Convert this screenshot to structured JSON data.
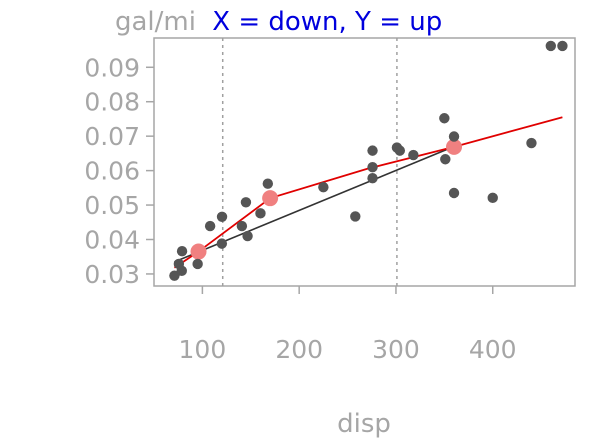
{
  "chart_data": {
    "type": "scatter",
    "title_prefix": "gal/mi",
    "title_main": "X = down, Y = up",
    "title_main_color": "#0000dd",
    "xlabel": "disp",
    "ylabel": "",
    "xlim": [
      50,
      485
    ],
    "ylim": [
      0.0265,
      0.0985
    ],
    "x_ticks": [
      100,
      200,
      300,
      400
    ],
    "y_ticks": [
      0.03,
      0.04,
      0.05,
      0.06,
      0.07,
      0.08,
      0.09
    ],
    "y_tick_labels": [
      "0.03",
      "0.04",
      "0.05",
      "0.06",
      "0.07",
      "0.08",
      "0.09"
    ],
    "vlines": [
      121,
      301
    ],
    "points": [
      {
        "x": 71.1,
        "y": 0.0295
      },
      {
        "x": 75.7,
        "y": 0.0329
      },
      {
        "x": 78.7,
        "y": 0.0309
      },
      {
        "x": 79.0,
        "y": 0.0366
      },
      {
        "x": 95.1,
        "y": 0.0329
      },
      {
        "x": 108.0,
        "y": 0.0439
      },
      {
        "x": 120.1,
        "y": 0.0388
      },
      {
        "x": 120.3,
        "y": 0.0466
      },
      {
        "x": 140.8,
        "y": 0.0439
      },
      {
        "x": 145.0,
        "y": 0.0508
      },
      {
        "x": 146.7,
        "y": 0.041
      },
      {
        "x": 160.0,
        "y": 0.0476
      },
      {
        "x": 167.6,
        "y": 0.0562
      },
      {
        "x": 225.0,
        "y": 0.0552
      },
      {
        "x": 258.0,
        "y": 0.0467
      },
      {
        "x": 275.8,
        "y": 0.0578
      },
      {
        "x": 275.8,
        "y": 0.061
      },
      {
        "x": 275.8,
        "y": 0.0658
      },
      {
        "x": 301.0,
        "y": 0.0667
      },
      {
        "x": 304.0,
        "y": 0.0658
      },
      {
        "x": 318.0,
        "y": 0.0645
      },
      {
        "x": 350.0,
        "y": 0.0752
      },
      {
        "x": 351.0,
        "y": 0.0633
      },
      {
        "x": 360.0,
        "y": 0.0535
      },
      {
        "x": 360.0,
        "y": 0.0699
      },
      {
        "x": 400.0,
        "y": 0.0521
      },
      {
        "x": 440.0,
        "y": 0.068
      },
      {
        "x": 460.0,
        "y": 0.0962
      },
      {
        "x": 472.0,
        "y": 0.0962
      }
    ],
    "group_means": [
      {
        "x": 96.0,
        "y": 0.0365
      },
      {
        "x": 170.0,
        "y": 0.052
      },
      {
        "x": 360.0,
        "y": 0.0669
      }
    ],
    "fit_line": [
      {
        "x": 71.1,
        "y": 0.0335
      },
      {
        "x": 360.0,
        "y": 0.067
      }
    ],
    "trend_line": [
      {
        "x": 71.1,
        "y": 0.0318
      },
      {
        "x": 96.0,
        "y": 0.0365
      },
      {
        "x": 170.0,
        "y": 0.052
      },
      {
        "x": 270.0,
        "y": 0.0605
      },
      {
        "x": 360.0,
        "y": 0.0669
      },
      {
        "x": 472.0,
        "y": 0.0755
      }
    ],
    "colors": {
      "points": "#555555",
      "group_means": "#f08080",
      "fit_line": "#333333",
      "trend_line": "#e00000",
      "vlines": "#a0a0a0",
      "frame": "#a6a6a6",
      "text": "#a6a6a6"
    },
    "grid": false,
    "legend": "none"
  }
}
